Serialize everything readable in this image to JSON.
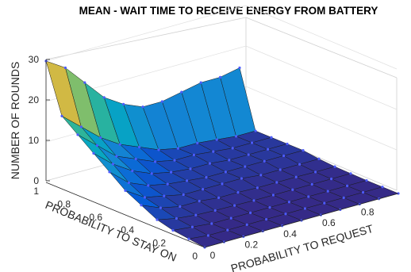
{
  "chart_data": {
    "type": "surface",
    "title": "MEAN - WAIT TIME TO RECEIVE ENERGY FROM BATTERY",
    "xlabel": "PROBABILITY TO REQUEST",
    "ylabel": "PROBABILITY TO STAY ON",
    "zlabel": "NUMBER OF ROUNDS",
    "xlim": [
      0,
      1
    ],
    "ylim": [
      0,
      1
    ],
    "zlim": [
      0,
      30
    ],
    "x_ticks": [
      "0",
      "0.2",
      "0.4",
      "0.6",
      "0.8"
    ],
    "y_ticks": [
      "0",
      "0.2",
      "0.4",
      "0.6",
      "0.8",
      "1"
    ],
    "z_ticks": [
      "0",
      "10",
      "20",
      "30"
    ],
    "grid": true,
    "colormap": "parula",
    "grid_points": [
      0,
      0.1,
      0.2,
      0.3,
      0.4,
      0.5,
      0.6,
      0.7,
      0.8,
      0.9,
      1.0
    ],
    "z_values_rows_by_stay_on": [
      [
        0,
        0,
        0,
        0,
        0,
        0,
        0,
        0,
        0,
        0,
        0
      ],
      [
        0.5,
        0,
        0,
        0,
        0,
        0,
        0,
        0,
        0,
        0,
        0
      ],
      [
        1,
        0.5,
        0,
        0,
        0,
        0,
        0,
        0,
        0,
        0,
        0
      ],
      [
        2,
        1,
        0.5,
        0.3,
        0.2,
        0.1,
        0.1,
        0.1,
        0.1,
        0.1,
        0.1
      ],
      [
        4,
        2,
        1,
        1,
        0.5,
        0.5,
        0.3,
        0.3,
        0.3,
        0.2,
        0.2
      ],
      [
        6,
        3,
        2,
        1,
        1,
        1,
        1,
        0.5,
        0.5,
        0.5,
        0.5
      ],
      [
        9,
        5,
        3,
        2,
        1.5,
        1,
        1,
        1,
        1,
        1,
        1
      ],
      [
        12,
        8,
        5,
        3,
        2,
        1.5,
        1.5,
        1,
        1,
        1,
        1
      ],
      [
        15,
        11,
        7,
        5,
        3,
        2,
        2,
        1.5,
        1,
        1,
        1
      ],
      [
        18,
        14,
        10,
        7,
        5,
        3,
        2,
        2,
        1.5,
        1,
        1
      ],
      [
        30,
        27,
        22,
        17,
        14,
        12,
        12,
        13,
        14,
        14,
        15
      ]
    ]
  }
}
